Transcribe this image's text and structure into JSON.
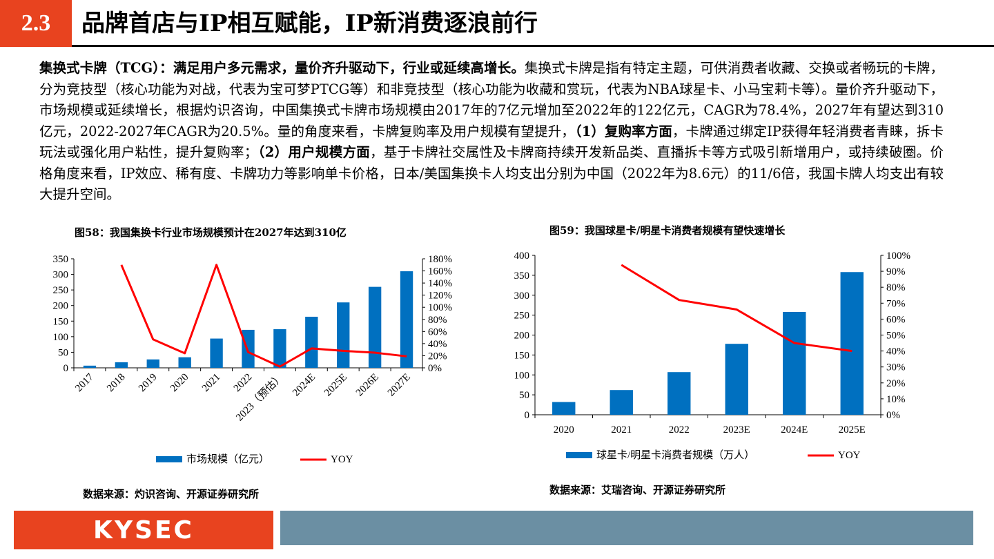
{
  "header": {
    "section_number": "2.3",
    "title": "品牌首店与IP相互赋能，IP新消费逐浪前行"
  },
  "body": {
    "lead_bold": "集换式卡牌（TCG）：满足用户多元需求，量价齐升驱动下，行业或延续高增长。",
    "text1": "集换式卡牌是指有特定主题，可供消费者收藏、交换或者畅玩的卡牌，分为竞技型（核心功能为对战，代表为宝可梦PTCG等）和非竞技型（核心功能为收藏和赏玩，代表为NBA球星卡、小马宝莉卡等）。量价齐升驱动下，市场规模或延续增长，根据灼识咨询，中国集换式卡牌市场规模由2017年的7亿元增加至2022年的122亿元，CAGR为78.4%，2027年有望达到310亿元，2022-2027年CAGR为20.5%。量的角度来看，卡牌复购率及用户规模有望提升，",
    "bold2": "（1）复购率方面",
    "text2": "，卡牌通过绑定IP获得年轻消费者青睐，拆卡玩法或强化用户粘性，提升复购率；",
    "bold3": "（2）用户规模方面",
    "text3": "，基于卡牌社交属性及卡牌商持续开发新品类、直播拆卡等方式吸引新增用户，或持续破圈。价格角度来看，IP效应、稀有度、卡牌功力等影响单卡价格，日本/美国集换卡人均支出分别为中国（2022年为8.6元）的11/6倍，我国卡牌人均支出有较大提升空间。"
  },
  "chart1": {
    "title": "图58：我国集换卡行业市场规模预计在2027年达到310亿",
    "source": "数据来源：灼识咨询、开源证券研究所"
  },
  "chart2": {
    "title": "图59：我国球星卡/明星卡消费者规模有望快速增长",
    "source": "数据来源：艾瑞咨询、开源证券研究所"
  },
  "footer": {
    "logo": "KYSEC"
  },
  "colors": {
    "bar": "#0070c0",
    "line": "#ff0000",
    "accent": "#e8431f",
    "footer_bar": "#6b8fa3"
  },
  "chart_data": [
    {
      "type": "bar",
      "categories": [
        "2017",
        "2018",
        "2019",
        "2020",
        "2021",
        "2022",
        "2023（预估）",
        "2024E",
        "2025E",
        "2026E",
        "2027E"
      ],
      "series": [
        {
          "name": "市场规模（亿元）",
          "type": "bar",
          "axis": "left",
          "values": [
            7,
            18,
            27,
            34,
            94,
            122,
            124,
            164,
            210,
            260,
            310
          ]
        },
        {
          "name": "YOY",
          "type": "line",
          "axis": "right",
          "values": [
            null,
            170,
            47,
            24,
            170,
            26,
            2,
            32,
            28,
            25,
            19
          ]
        }
      ],
      "y_left": {
        "min": 0,
        "max": 350,
        "ticks": [
          "0",
          "50",
          "100",
          "150",
          "200",
          "250",
          "300",
          "350"
        ]
      },
      "y_right": {
        "min": 0,
        "max": 180,
        "ticks": [
          "0%",
          "20%",
          "40%",
          "60%",
          "80%",
          "100%",
          "120%",
          "140%",
          "160%",
          "180%"
        ]
      },
      "legend": "bottom"
    },
    {
      "type": "bar",
      "categories": [
        "2020",
        "2021",
        "2022",
        "2023E",
        "2024E",
        "2025E"
      ],
      "series": [
        {
          "name": "球星卡/明星卡消费者规模（万人）",
          "type": "bar",
          "axis": "left",
          "values": [
            32,
            62,
            107,
            178,
            258,
            358
          ]
        },
        {
          "name": "YOY",
          "type": "line",
          "axis": "right",
          "values": [
            null,
            94,
            72,
            66,
            45,
            40
          ]
        }
      ],
      "y_left": {
        "min": 0,
        "max": 400,
        "ticks": [
          "0",
          "50",
          "100",
          "150",
          "200",
          "250",
          "300",
          "350",
          "400"
        ]
      },
      "y_right": {
        "min": 0,
        "max": 100,
        "ticks": [
          "0%",
          "10%",
          "20%",
          "30%",
          "40%",
          "50%",
          "60%",
          "70%",
          "80%",
          "90%",
          "100%"
        ]
      },
      "legend": "bottom"
    }
  ]
}
